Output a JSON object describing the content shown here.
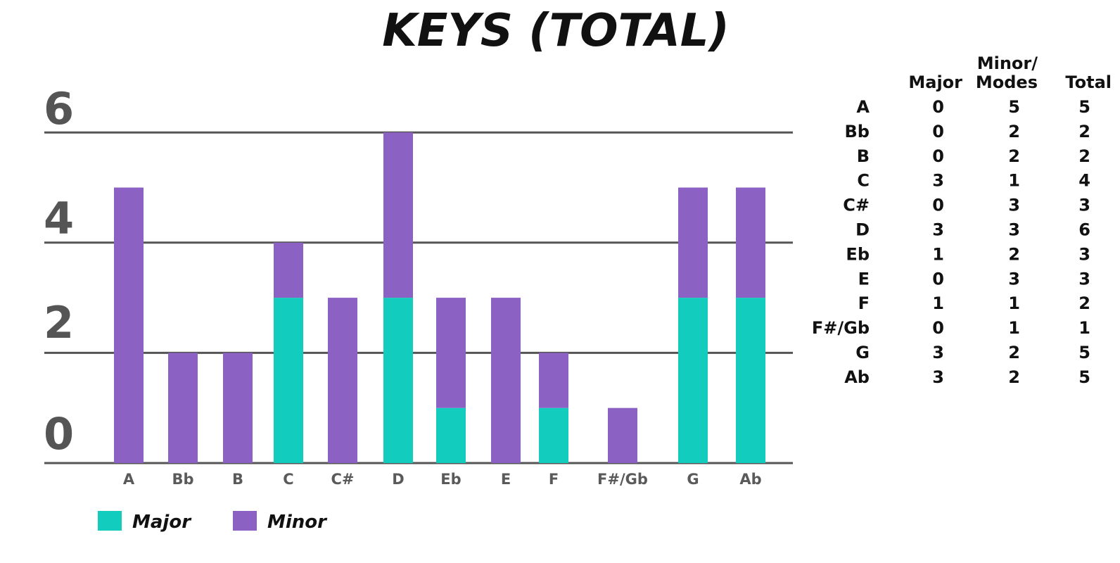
{
  "chart_data": {
    "type": "bar",
    "stacked": true,
    "title": "KEYS (TOTAL)",
    "categories": [
      "A",
      "Bb",
      "B",
      "C",
      "C#",
      "D",
      "Eb",
      "E",
      "F",
      "F#/Gb",
      "G",
      "Ab"
    ],
    "series": [
      {
        "name": "Major",
        "color": "#12cdbd",
        "values": [
          0,
          0,
          0,
          3,
          0,
          3,
          1,
          0,
          1,
          0,
          3,
          3
        ]
      },
      {
        "name": "Minor",
        "color": "#8b61c3",
        "values": [
          5,
          2,
          2,
          1,
          3,
          3,
          2,
          3,
          1,
          1,
          2,
          2
        ]
      }
    ],
    "yticks": [
      "0",
      "2",
      "4",
      "6"
    ],
    "ylim": [
      0,
      6
    ],
    "grid": true,
    "legend": "bottom-left",
    "xlabel": "",
    "ylabel": ""
  },
  "table": {
    "headers": {
      "major": "Major",
      "minor_line1": "Minor/",
      "minor_line2": "Modes",
      "total": "Total"
    },
    "rows": [
      {
        "key": "A",
        "major": "0",
        "minor": "5",
        "total": "5"
      },
      {
        "key": "Bb",
        "major": "0",
        "minor": "2",
        "total": "2"
      },
      {
        "key": "B",
        "major": "0",
        "minor": "2",
        "total": "2"
      },
      {
        "key": "C",
        "major": "3",
        "minor": "1",
        "total": "4"
      },
      {
        "key": "C#",
        "major": "0",
        "minor": "3",
        "total": "3"
      },
      {
        "key": "D",
        "major": "3",
        "minor": "3",
        "total": "6"
      },
      {
        "key": "Eb",
        "major": "1",
        "minor": "2",
        "total": "3"
      },
      {
        "key": "E",
        "major": "0",
        "minor": "3",
        "total": "3"
      },
      {
        "key": "F",
        "major": "1",
        "minor": "1",
        "total": "2"
      },
      {
        "key": "F#/Gb",
        "major": "0",
        "minor": "1",
        "total": "1"
      },
      {
        "key": "G",
        "major": "3",
        "minor": "2",
        "total": "5"
      },
      {
        "key": "Ab",
        "major": "3",
        "minor": "2",
        "total": "5"
      }
    ]
  },
  "colors": {
    "gridline": "#555555",
    "tick_text": "#555555"
  }
}
